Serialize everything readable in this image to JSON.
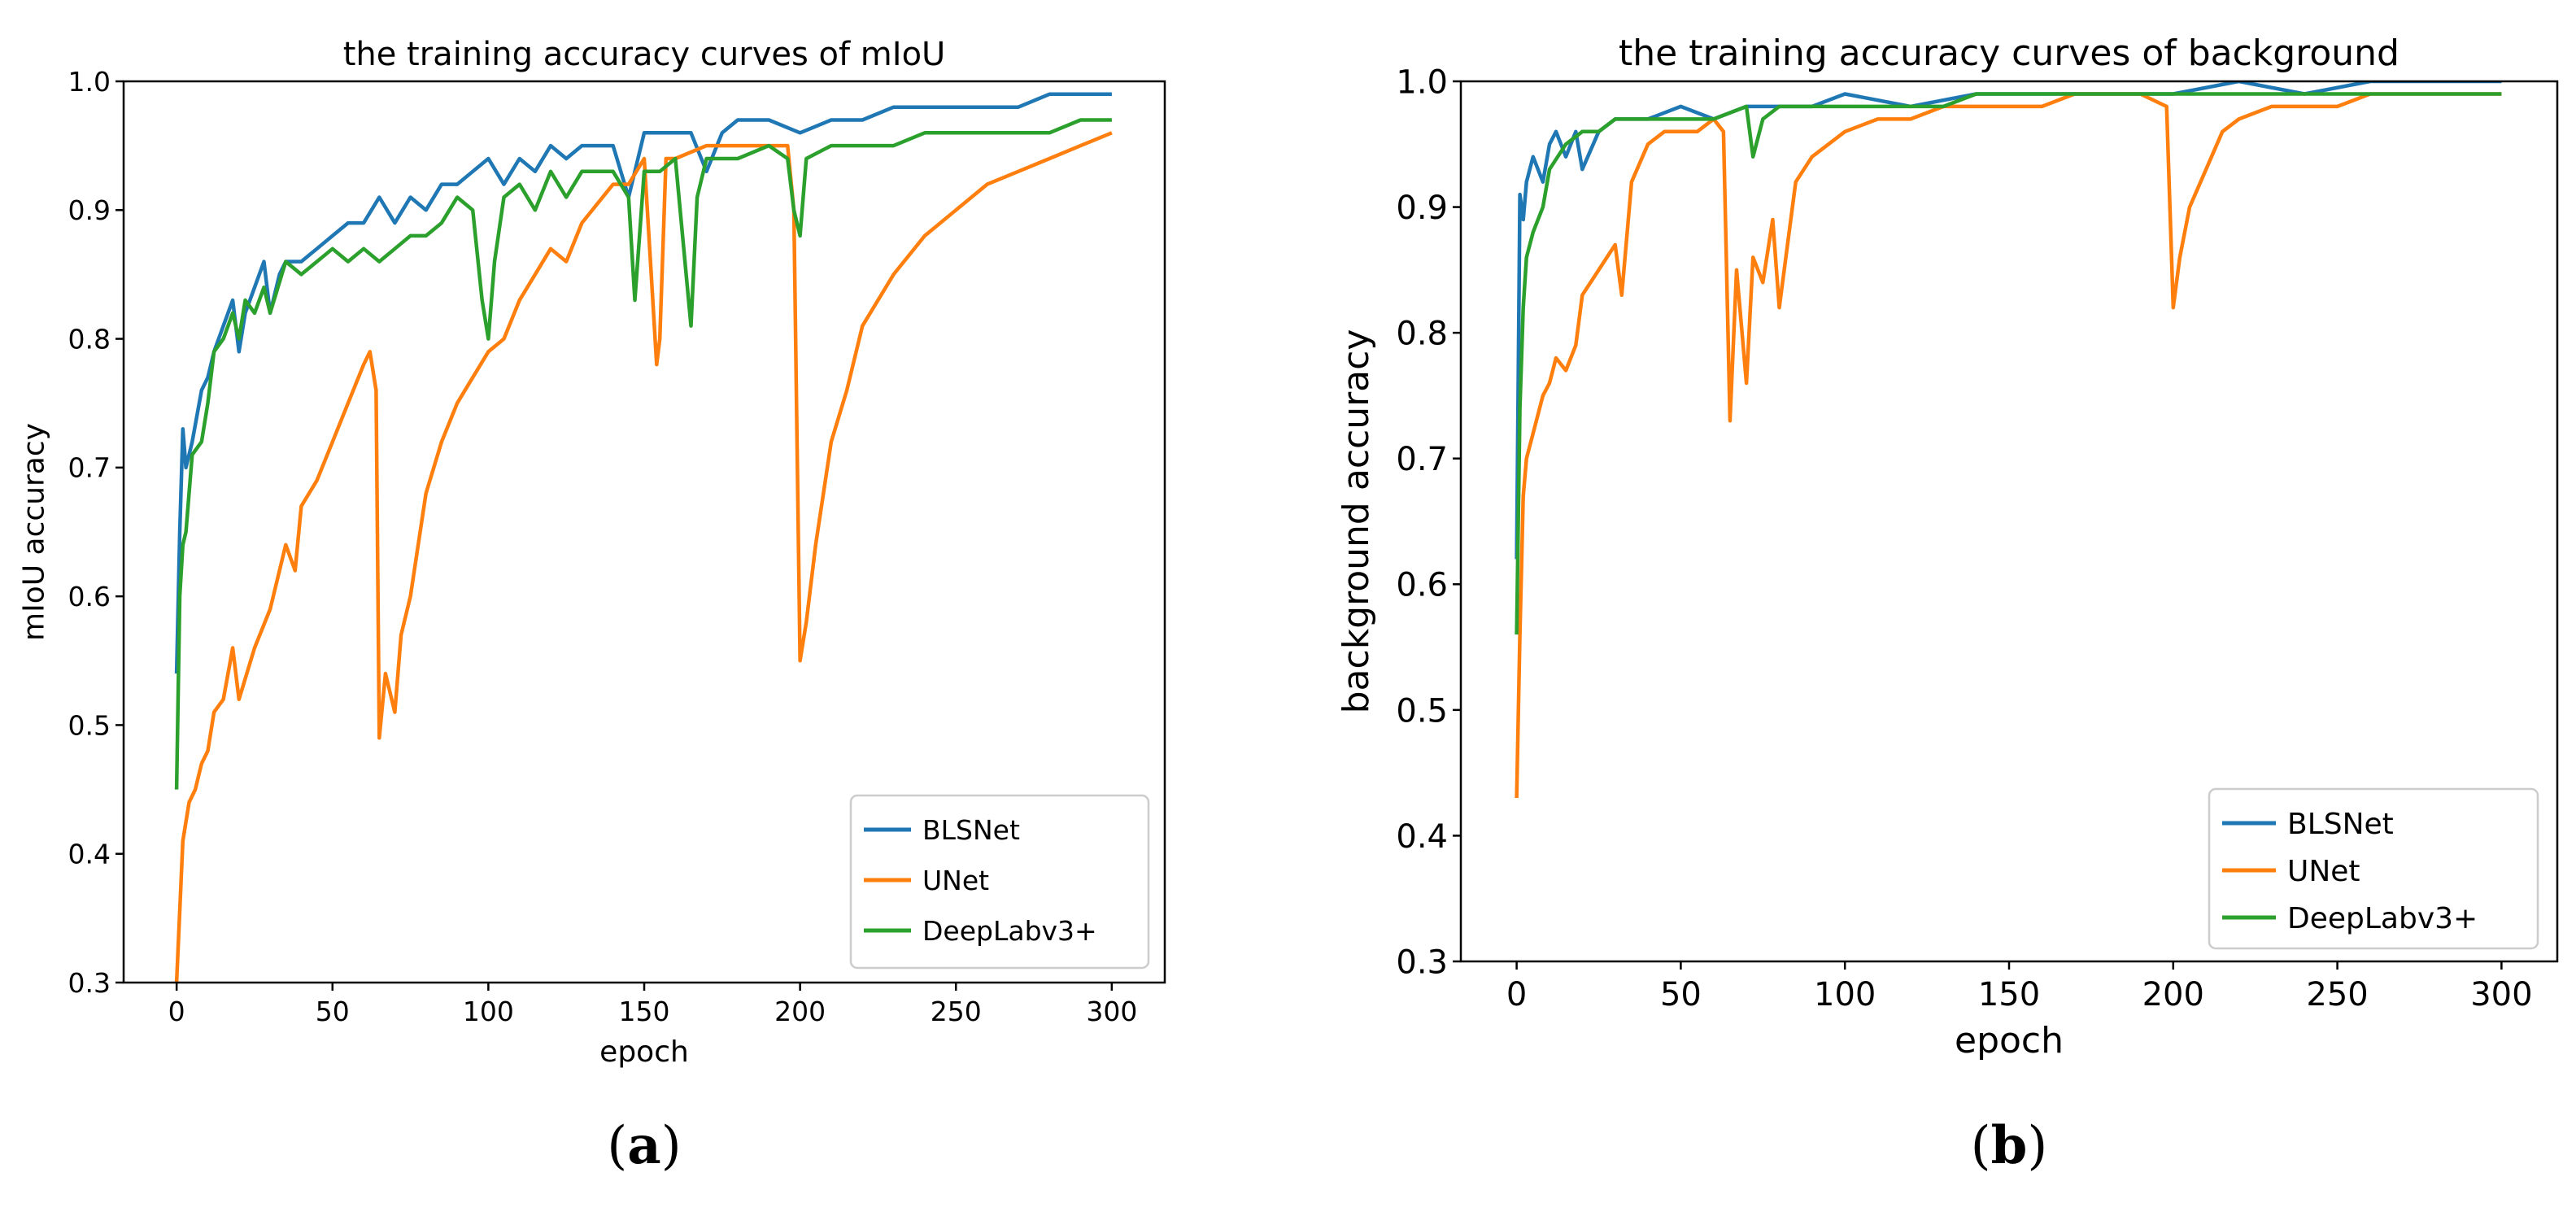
{
  "colors": {
    "blsnet": "#1f77b4",
    "unet": "#ff7f0e",
    "deeplab": "#2ca02c",
    "axis": "#000000",
    "legend_border": "#cccccc"
  },
  "chart_data": [
    {
      "type": "line",
      "title": "the training accuracy curves of mIoU",
      "xlabel": "epoch",
      "ylabel": "mIoU accuracy",
      "xlim": [
        -17,
        317
      ],
      "ylim": [
        0.3,
        1.0
      ],
      "xticks": [
        0,
        50,
        100,
        150,
        200,
        250,
        300
      ],
      "yticks": [
        0.3,
        0.4,
        0.5,
        0.6,
        0.7,
        0.8,
        0.9,
        1.0
      ],
      "ytick_labels": [
        "0.3",
        "0.4",
        "0.5",
        "0.6",
        "0.7",
        "0.8",
        "0.9",
        "1.0"
      ],
      "grid": false,
      "legend_position": "lower-right",
      "panel_label": "(a)",
      "series": [
        {
          "name": "BLSNet",
          "color_key": "blsnet",
          "x": [
            0,
            1,
            2,
            3,
            5,
            8,
            10,
            12,
            15,
            18,
            20,
            22,
            25,
            28,
            30,
            33,
            35,
            40,
            45,
            50,
            55,
            60,
            65,
            70,
            75,
            80,
            85,
            90,
            95,
            100,
            105,
            110,
            115,
            120,
            125,
            130,
            140,
            145,
            150,
            155,
            160,
            165,
            170,
            175,
            180,
            190,
            200,
            210,
            220,
            230,
            240,
            250,
            260,
            270,
            280,
            290,
            300
          ],
          "y": [
            0.54,
            0.65,
            0.73,
            0.7,
            0.72,
            0.76,
            0.77,
            0.79,
            0.81,
            0.83,
            0.79,
            0.82,
            0.84,
            0.86,
            0.82,
            0.85,
            0.86,
            0.86,
            0.87,
            0.88,
            0.89,
            0.89,
            0.91,
            0.89,
            0.91,
            0.9,
            0.92,
            0.92,
            0.93,
            0.94,
            0.92,
            0.94,
            0.93,
            0.95,
            0.94,
            0.95,
            0.95,
            0.91,
            0.96,
            0.96,
            0.96,
            0.96,
            0.93,
            0.96,
            0.97,
            0.97,
            0.96,
            0.97,
            0.97,
            0.98,
            0.98,
            0.98,
            0.98,
            0.98,
            0.99,
            0.99,
            0.99
          ]
        },
        {
          "name": "UNet",
          "color_key": "unet",
          "x": [
            0,
            2,
            4,
            6,
            8,
            10,
            12,
            15,
            18,
            20,
            25,
            30,
            35,
            38,
            40,
            45,
            50,
            55,
            60,
            62,
            64,
            65,
            67,
            70,
            72,
            75,
            80,
            85,
            90,
            95,
            100,
            105,
            110,
            115,
            120,
            125,
            130,
            140,
            145,
            150,
            152,
            154,
            155,
            157,
            160,
            170,
            180,
            190,
            196,
            198,
            200,
            202,
            205,
            210,
            215,
            220,
            230,
            240,
            250,
            260,
            270,
            280,
            290,
            300
          ],
          "y": [
            0.3,
            0.41,
            0.44,
            0.45,
            0.47,
            0.48,
            0.51,
            0.52,
            0.56,
            0.52,
            0.56,
            0.59,
            0.64,
            0.62,
            0.67,
            0.69,
            0.72,
            0.75,
            0.78,
            0.79,
            0.76,
            0.49,
            0.54,
            0.51,
            0.57,
            0.6,
            0.68,
            0.72,
            0.75,
            0.77,
            0.79,
            0.8,
            0.83,
            0.85,
            0.87,
            0.86,
            0.89,
            0.92,
            0.92,
            0.94,
            0.86,
            0.78,
            0.8,
            0.94,
            0.94,
            0.95,
            0.95,
            0.95,
            0.95,
            0.9,
            0.55,
            0.58,
            0.64,
            0.72,
            0.76,
            0.81,
            0.85,
            0.88,
            0.9,
            0.92,
            0.93,
            0.94,
            0.95,
            0.96
          ]
        },
        {
          "name": "DeepLabv3+",
          "color_key": "deeplab",
          "x": [
            0,
            1,
            2,
            3,
            5,
            8,
            10,
            12,
            15,
            18,
            20,
            22,
            25,
            28,
            30,
            35,
            40,
            45,
            50,
            55,
            60,
            65,
            70,
            75,
            80,
            85,
            90,
            95,
            98,
            100,
            102,
            105,
            110,
            115,
            120,
            125,
            130,
            140,
            145,
            147,
            150,
            155,
            160,
            165,
            167,
            170,
            180,
            190,
            196,
            198,
            200,
            202,
            210,
            220,
            230,
            240,
            250,
            260,
            270,
            280,
            290,
            300
          ],
          "y": [
            0.45,
            0.6,
            0.64,
            0.65,
            0.71,
            0.72,
            0.75,
            0.79,
            0.8,
            0.82,
            0.8,
            0.83,
            0.82,
            0.84,
            0.82,
            0.86,
            0.85,
            0.86,
            0.87,
            0.86,
            0.87,
            0.86,
            0.87,
            0.88,
            0.88,
            0.89,
            0.91,
            0.9,
            0.83,
            0.8,
            0.86,
            0.91,
            0.92,
            0.9,
            0.93,
            0.91,
            0.93,
            0.93,
            0.91,
            0.83,
            0.93,
            0.93,
            0.94,
            0.81,
            0.91,
            0.94,
            0.94,
            0.95,
            0.94,
            0.9,
            0.88,
            0.94,
            0.95,
            0.95,
            0.95,
            0.96,
            0.96,
            0.96,
            0.96,
            0.96,
            0.97,
            0.97
          ]
        }
      ]
    },
    {
      "type": "line",
      "title": "the training accuracy curves of background",
      "xlabel": "epoch",
      "ylabel": "background accuracy",
      "xlim": [
        -17,
        317
      ],
      "ylim": [
        0.3,
        1.0
      ],
      "xticks": [
        0,
        50,
        100,
        150,
        200,
        250,
        300
      ],
      "yticks": [
        0.3,
        0.4,
        0.5,
        0.6,
        0.7,
        0.8,
        0.9,
        1.0
      ],
      "ytick_labels": [
        "0.3",
        "0.4",
        "0.5",
        "0.6",
        "0.7",
        "0.8",
        "0.9",
        "1.0"
      ],
      "grid": false,
      "legend_position": "lower-right",
      "panel_label": "(b)",
      "series": [
        {
          "name": "BLSNet",
          "color_key": "blsnet",
          "x": [
            0,
            1,
            2,
            3,
            5,
            8,
            10,
            12,
            15,
            18,
            20,
            25,
            30,
            35,
            40,
            50,
            60,
            70,
            80,
            90,
            100,
            120,
            140,
            160,
            180,
            200,
            220,
            240,
            260,
            280,
            300
          ],
          "y": [
            0.62,
            0.91,
            0.89,
            0.92,
            0.94,
            0.92,
            0.95,
            0.96,
            0.94,
            0.96,
            0.93,
            0.96,
            0.97,
            0.97,
            0.97,
            0.98,
            0.97,
            0.98,
            0.98,
            0.98,
            0.99,
            0.98,
            0.99,
            0.99,
            0.99,
            0.99,
            1.0,
            0.99,
            1.0,
            1.0,
            1.0
          ]
        },
        {
          "name": "UNet",
          "color_key": "unet",
          "x": [
            0,
            1,
            2,
            3,
            5,
            8,
            10,
            12,
            15,
            18,
            20,
            25,
            30,
            32,
            35,
            40,
            45,
            50,
            55,
            60,
            63,
            65,
            67,
            70,
            72,
            75,
            78,
            80,
            85,
            90,
            95,
            100,
            110,
            120,
            130,
            140,
            150,
            160,
            170,
            180,
            190,
            198,
            200,
            202,
            205,
            210,
            215,
            220,
            230,
            240,
            250,
            260,
            270,
            280,
            290,
            300
          ],
          "y": [
            0.43,
            0.56,
            0.67,
            0.7,
            0.72,
            0.75,
            0.76,
            0.78,
            0.77,
            0.79,
            0.83,
            0.85,
            0.87,
            0.83,
            0.92,
            0.95,
            0.96,
            0.96,
            0.96,
            0.97,
            0.96,
            0.73,
            0.85,
            0.76,
            0.86,
            0.84,
            0.89,
            0.82,
            0.92,
            0.94,
            0.95,
            0.96,
            0.97,
            0.97,
            0.98,
            0.98,
            0.98,
            0.98,
            0.99,
            0.99,
            0.99,
            0.98,
            0.82,
            0.86,
            0.9,
            0.93,
            0.96,
            0.97,
            0.98,
            0.98,
            0.98,
            0.99,
            0.99,
            0.99,
            0.99,
            0.99
          ]
        },
        {
          "name": "DeepLabv3+",
          "color_key": "deeplab",
          "x": [
            0,
            1,
            2,
            3,
            5,
            8,
            10,
            15,
            20,
            25,
            30,
            40,
            50,
            60,
            70,
            72,
            75,
            80,
            90,
            100,
            110,
            120,
            130,
            140,
            150,
            160,
            170,
            180,
            190,
            200,
            220,
            240,
            260,
            280,
            300
          ],
          "y": [
            0.56,
            0.74,
            0.82,
            0.86,
            0.88,
            0.9,
            0.93,
            0.95,
            0.96,
            0.96,
            0.97,
            0.97,
            0.97,
            0.97,
            0.98,
            0.94,
            0.97,
            0.98,
            0.98,
            0.98,
            0.98,
            0.98,
            0.98,
            0.99,
            0.99,
            0.99,
            0.99,
            0.99,
            0.99,
            0.99,
            0.99,
            0.99,
            0.99,
            0.99,
            0.99
          ]
        }
      ]
    }
  ]
}
